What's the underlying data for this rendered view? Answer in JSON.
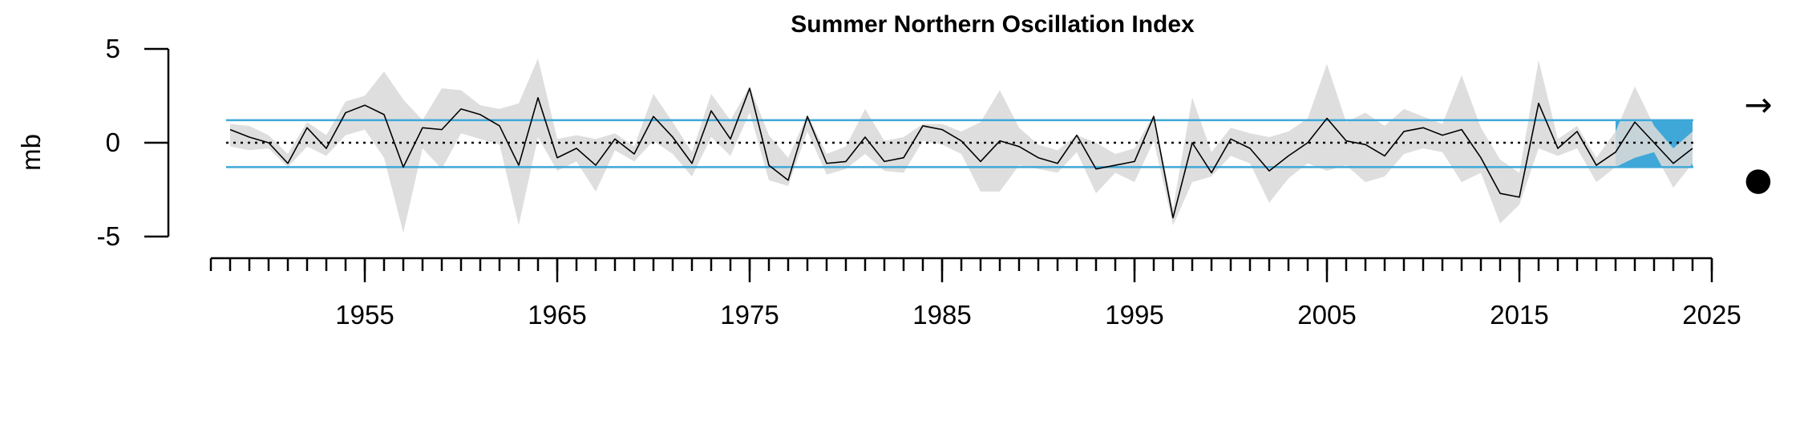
{
  "chart_data": {
    "type": "line",
    "title": "Summer Northern Oscillation Index",
    "xlabel": "",
    "ylabel": "mb",
    "xlim": [
      1947,
      2025
    ],
    "ylim": [
      -5,
      5
    ],
    "y_ticks": [
      -5,
      0,
      5
    ],
    "x_ticks": [
      1955,
      1965,
      1975,
      1985,
      1995,
      2005,
      2015,
      2025
    ],
    "x_minor_tick_step": 1,
    "reference_lines": {
      "mean": 0,
      "upper_sd": 1.2,
      "lower_sd": -1.3
    },
    "highlight_period": [
      2020,
      2024
    ],
    "trend_symbol": "→",
    "status_symbol": "●",
    "colors": {
      "line": "#000000",
      "band": "#d9d9d9",
      "sd_lines": "#3fa8d8",
      "highlight": "#3fa8d8"
    },
    "series": [
      {
        "x": [
          1948,
          1949,
          1950,
          1951,
          1952,
          1953,
          1954,
          1955,
          1956,
          1957,
          1958,
          1959,
          1960,
          1961,
          1962,
          1963,
          1964,
          1965,
          1966,
          1967,
          1968,
          1969,
          1970,
          1971,
          1972,
          1973,
          1974,
          1975,
          1976,
          1977,
          1978,
          1979,
          1980,
          1981,
          1982,
          1983,
          1984,
          1985,
          1986,
          1987,
          1988,
          1989,
          1990,
          1991,
          1992,
          1993,
          1994,
          1995,
          1996,
          1997,
          1998,
          1999,
          2000,
          2001,
          2002,
          2003,
          2004,
          2005,
          2006,
          2007,
          2008,
          2009,
          2010,
          2011,
          2012,
          2013,
          2014,
          2015,
          2016,
          2017,
          2018,
          2019,
          2020,
          2021,
          2022,
          2023,
          2024
        ],
        "values": [
          0.7,
          0.3,
          0.0,
          -1.1,
          0.8,
          -0.3,
          1.6,
          2.0,
          1.5,
          -1.3,
          0.8,
          0.7,
          1.8,
          1.5,
          0.9,
          -1.2,
          2.4,
          -0.8,
          -0.3,
          -1.2,
          0.2,
          -0.6,
          1.4,
          0.3,
          -1.1,
          1.7,
          0.2,
          2.9,
          -1.2,
          -2.0,
          1.4,
          -1.1,
          -1.0,
          0.3,
          -1.0,
          -0.8,
          0.9,
          0.7,
          0.1,
          -1.0,
          0.1,
          -0.2,
          -0.8,
          -1.1,
          0.4,
          -1.4,
          -1.2,
          -1.0,
          1.4,
          -4.0,
          0.0,
          -1.6,
          0.2,
          -0.3,
          -1.5,
          -0.7,
          0.0,
          1.3,
          0.1,
          -0.1,
          -0.7,
          0.6,
          0.8,
          0.4,
          0.7,
          -0.8,
          -2.7,
          -2.9,
          2.1,
          -0.3,
          0.6,
          -1.2,
          -0.5,
          1.1,
          0.0,
          -1.1,
          -0.3
        ],
        "lower": [
          -0.2,
          -0.4,
          -0.3,
          -1.3,
          -0.2,
          -0.7,
          0.4,
          0.7,
          -0.8,
          -4.8,
          -0.3,
          -1.4,
          0.5,
          0.2,
          -0.1,
          -4.4,
          0.3,
          -1.5,
          -1.0,
          -2.6,
          -0.4,
          -1.0,
          0.1,
          -0.6,
          -1.8,
          0.3,
          -0.7,
          1.6,
          -2.0,
          -2.3,
          0.6,
          -1.7,
          -1.4,
          -0.6,
          -1.5,
          -1.6,
          0.1,
          -0.1,
          -0.6,
          -2.6,
          -2.6,
          -1.2,
          -1.4,
          -1.6,
          -0.5,
          -2.7,
          -1.6,
          -2.1,
          0.1,
          -4.4,
          -2.1,
          -1.8,
          -0.7,
          -1.1,
          -3.2,
          -1.9,
          -1.1,
          -1.5,
          -1.2,
          -2.1,
          -1.8,
          -0.6,
          -0.3,
          -0.5,
          -2.1,
          -1.6,
          -4.3,
          -3.3,
          -0.3,
          -0.7,
          -0.3,
          -2.1,
          -1.3,
          -0.8,
          -0.5,
          -2.4,
          -1.1
        ],
        "upper": [
          1.0,
          0.9,
          0.4,
          -0.6,
          1.1,
          0.4,
          2.2,
          2.5,
          3.8,
          2.3,
          1.2,
          2.9,
          2.8,
          2.0,
          1.8,
          2.1,
          4.5,
          0.2,
          0.4,
          0.2,
          0.5,
          -0.2,
          2.6,
          1.1,
          -0.5,
          2.6,
          1.2,
          3.0,
          0.4,
          -0.8,
          1.5,
          -0.6,
          -0.2,
          1.8,
          0.1,
          0.3,
          1.0,
          1.0,
          0.6,
          1.1,
          2.8,
          0.8,
          -0.1,
          -0.4,
          0.4,
          0.0,
          -0.6,
          -0.3,
          1.5,
          -3.5,
          2.4,
          -0.5,
          0.8,
          0.5,
          0.3,
          0.6,
          1.3,
          4.2,
          1.1,
          1.6,
          0.9,
          1.8,
          1.4,
          1.0,
          3.6,
          0.8,
          -0.9,
          -1.6,
          4.4,
          0.2,
          0.9,
          -0.8,
          0.6,
          3.0,
          0.9,
          -0.3,
          0.6
        ]
      }
    ]
  }
}
